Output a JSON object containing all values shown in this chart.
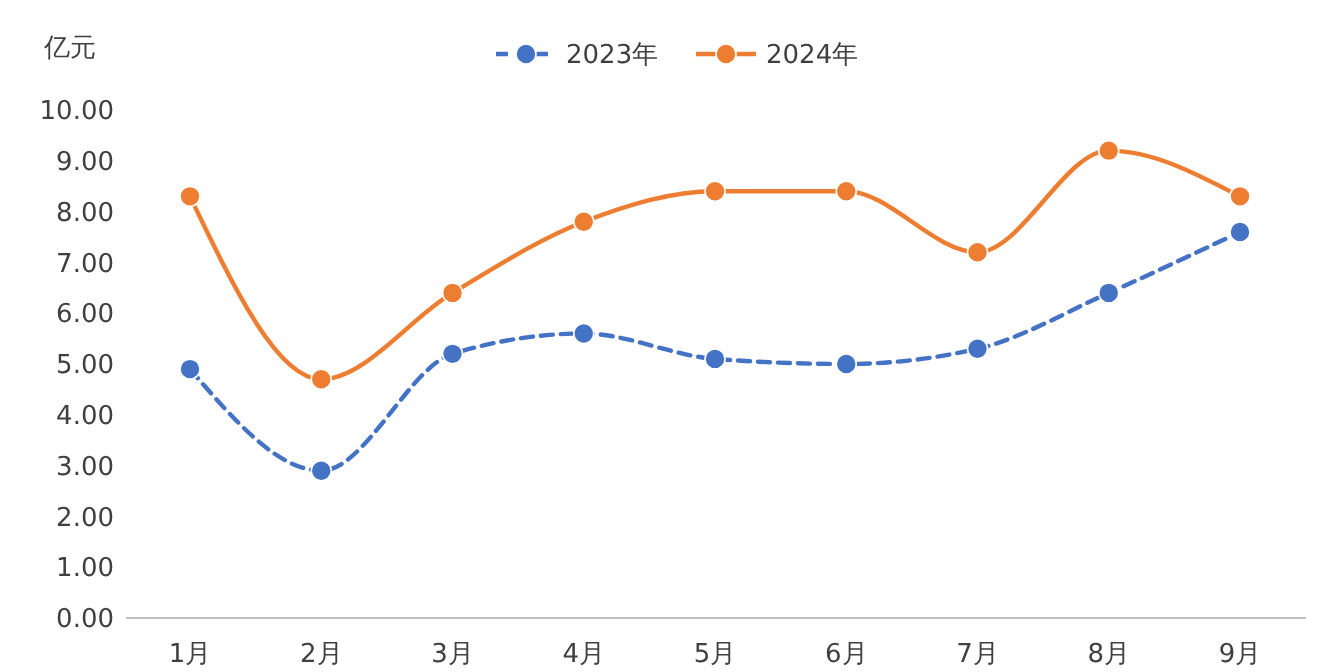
{
  "chart_data": {
    "type": "line",
    "ylabel": "亿元",
    "categories": [
      "1月",
      "2月",
      "3月",
      "4月",
      "5月",
      "6月",
      "7月",
      "8月",
      "9月"
    ],
    "series": [
      {
        "name": "2023年",
        "color": "#4472c4",
        "line_style": "dashed",
        "values": [
          4.9,
          2.9,
          5.2,
          5.6,
          5.1,
          5.0,
          5.3,
          6.4,
          7.6
        ]
      },
      {
        "name": "2024年",
        "color": "#ed7d31",
        "line_style": "solid",
        "values": [
          8.3,
          4.7,
          6.4,
          7.8,
          8.4,
          8.4,
          7.2,
          9.2,
          8.3
        ]
      }
    ],
    "ylim": [
      0,
      10
    ],
    "yticks": [
      {
        "value": 0,
        "label": "0.00"
      },
      {
        "value": 1,
        "label": "1.00"
      },
      {
        "value": 2,
        "label": "2.00"
      },
      {
        "value": 3,
        "label": "3.00"
      },
      {
        "value": 4,
        "label": "4.00"
      },
      {
        "value": 5,
        "label": "5.00"
      },
      {
        "value": 6,
        "label": "6.00"
      },
      {
        "value": 7,
        "label": "7.00"
      },
      {
        "value": 8,
        "label": "8.00"
      },
      {
        "value": 9,
        "label": "9.00"
      },
      {
        "value": 10,
        "label": "10.00"
      }
    ],
    "grid": false,
    "legend": "top",
    "marker": "circle"
  }
}
